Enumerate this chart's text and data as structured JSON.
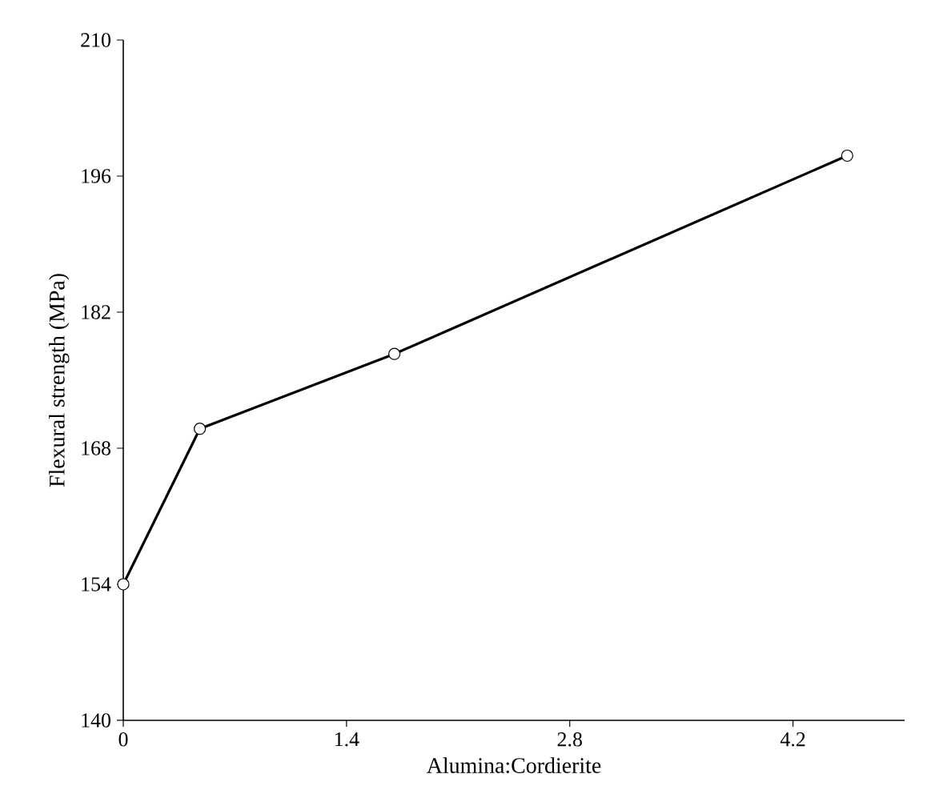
{
  "chart_data": {
    "type": "line",
    "xlabel": "Alumina:Cordierite",
    "ylabel": "Flexural strength (MPa)",
    "x": [
      0,
      0.48,
      1.7,
      4.54
    ],
    "series": [
      {
        "color": "#000000",
        "values": [
          154,
          170,
          177.7,
          198.1
        ]
      }
    ],
    "xlim": [
      0,
      4.9
    ],
    "ylim": [
      140,
      210
    ],
    "xticks": [
      0,
      1.4,
      2.8,
      4.2
    ],
    "yticks": [
      140,
      154,
      168,
      182,
      196,
      210
    ],
    "marker": "circle",
    "line_style": "solid",
    "grid": false
  }
}
